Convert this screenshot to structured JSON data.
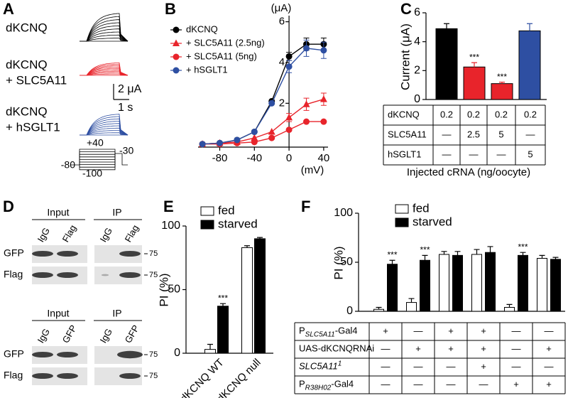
{
  "panel_labels": [
    "A",
    "B",
    "C",
    "D",
    "E",
    "F"
  ],
  "panel_a": {
    "conditions": [
      [
        "dKCNQ"
      ],
      [
        "dKCNQ",
        "+ SLC5A11"
      ],
      [
        "dKCNQ",
        "+ hSGLT1"
      ]
    ],
    "scale": [
      "2 μA",
      "1 s"
    ],
    "protocol": [
      "+40",
      "-30",
      "-80",
      "-100"
    ]
  },
  "chart_data": [
    {
      "type": "line",
      "y_label": "(μA)",
      "x_label": "(mV)",
      "x": [
        -100,
        -80,
        -60,
        -40,
        -20,
        0,
        20,
        40
      ],
      "xlim": [
        -105,
        45
      ],
      "ylim": [
        -0.15,
        6.3
      ],
      "xticks": [
        -80,
        -40,
        0,
        40
      ],
      "yticks": [
        2,
        4,
        6
      ],
      "series": [
        {
          "name": "dKCNQ",
          "color": "#000000",
          "marker": "circle",
          "values": [
            0,
            0.05,
            0.2,
            0.6,
            2.1,
            4.3,
            4.9,
            4.9
          ],
          "errors": [
            null,
            null,
            null,
            null,
            null,
            0.2,
            0.3,
            0.3
          ]
        },
        {
          "name": "+ SLC5A11 (2.5ng)",
          "color": "#e8242b",
          "marker": "triangle",
          "values": [
            0,
            0.05,
            0.1,
            0.3,
            0.6,
            1.3,
            1.95,
            2.2
          ],
          "errors": [
            null,
            null,
            null,
            null,
            null,
            0.2,
            0.3,
            0.3
          ]
        },
        {
          "name": "+ SLC5A11 (5ng)",
          "color": "#e8242b",
          "marker": "circle",
          "values": [
            0,
            0,
            0.05,
            0.1,
            0.3,
            0.7,
            1.1,
            1.1
          ]
        },
        {
          "name": "+ hSGLT1",
          "color": "#2e4fa2",
          "marker": "circle",
          "values": [
            0,
            0.05,
            0.2,
            0.6,
            2.0,
            3.8,
            4.7,
            4.6
          ],
          "errors": [
            null,
            null,
            null,
            null,
            null,
            0.3,
            0.4,
            0.4
          ]
        }
      ]
    },
    {
      "type": "bar",
      "y_label": "Current (μA)",
      "values": [
        4.9,
        2.25,
        1.1,
        4.75
      ],
      "errors": [
        0.35,
        0.3,
        0.1,
        0.5
      ],
      "colors": [
        "#000000",
        "#e8242b",
        "#e8242b",
        "#2e4fa2"
      ],
      "annotations": [
        null,
        "***",
        "***",
        null
      ],
      "ylim": [
        0,
        6
      ],
      "yticks": [
        0,
        2,
        4,
        6
      ]
    },
    {
      "type": "bar",
      "y_label": "PI (%)",
      "categories": [
        "dKCNQ WT",
        "dKCNQ null"
      ],
      "series": [
        {
          "name": "fed",
          "color": "#ffffff",
          "values": [
            3,
            83
          ],
          "errors": [
            4,
            1.5
          ]
        },
        {
          "name": "starved",
          "color": "#000000",
          "values": [
            37,
            90
          ],
          "errors": [
            2,
            1
          ],
          "annotations": [
            "***",
            null
          ]
        }
      ],
      "ylim": [
        0,
        100
      ],
      "yticks": [
        0,
        50,
        100
      ]
    },
    {
      "type": "bar",
      "y_label": "PI (%)",
      "series": [
        {
          "name": "fed",
          "color": "#ffffff",
          "values": [
            2,
            9,
            58,
            58,
            4,
            54
          ],
          "errors": [
            2,
            4,
            3,
            5,
            3,
            3
          ]
        },
        {
          "name": "starved",
          "color": "#000000",
          "values": [
            48,
            52,
            57,
            60,
            57,
            53
          ],
          "errors": [
            4,
            5,
            4,
            6,
            3,
            2
          ],
          "annotations": [
            "***",
            "***",
            null,
            null,
            "***",
            null
          ]
        }
      ],
      "ylim": [
        0,
        100
      ],
      "yticks": [
        0,
        50,
        100
      ]
    }
  ],
  "tables": {
    "c": {
      "rows": [
        {
          "label": "dKCNQ",
          "cells": [
            0.2,
            0.2,
            0.2,
            0.2
          ]
        },
        {
          "label": "SLC5A11",
          "cells": [
            "—",
            2.5,
            5,
            "—"
          ]
        },
        {
          "label": "hSGLT1",
          "cells": [
            "—",
            "—",
            "—",
            5
          ]
        }
      ],
      "caption": "Injected cRNA (ng/oocyte)"
    },
    "f": {
      "rows": [
        {
          "label": [
            {
              "text": "P"
            },
            {
              "text": "SLC5A11",
              "script": "sub",
              "italic": true
            },
            {
              "text": "-Gal4"
            }
          ],
          "cells": [
            "+",
            "—",
            "+",
            "+",
            "—",
            "—"
          ]
        },
        {
          "label": [
            {
              "text": "UAS-dKCNQRNAi"
            }
          ],
          "cells": [
            "—",
            "+",
            "+",
            "+",
            "—",
            "+"
          ]
        },
        {
          "label": [
            {
              "text": "SLC5A11",
              "italic": true
            },
            {
              "text": "1",
              "script": "sup",
              "italic": true
            }
          ],
          "cells": [
            "—",
            "—",
            "—",
            "+",
            "—",
            "—"
          ]
        },
        {
          "label": [
            {
              "text": "P"
            },
            {
              "text": "R38H02",
              "script": "sub",
              "italic": true
            },
            {
              "text": "-Gal4"
            }
          ],
          "cells": [
            "—",
            "—",
            "—",
            "—",
            "+",
            "+"
          ]
        }
      ]
    }
  },
  "panel_d": {
    "blots": [
      {
        "headers": [
          "Input",
          "IP"
        ],
        "lanes": [
          "IgG",
          "Flag",
          "IgG",
          "Flag"
        ],
        "rows": [
          "GFP",
          "Flag"
        ],
        "marker": "75"
      },
      {
        "headers": [
          "Input",
          "IP"
        ],
        "lanes": [
          "IgG",
          "GFP",
          "IgG",
          "GFP"
        ],
        "rows": [
          "GFP",
          "Flag"
        ],
        "marker": "75"
      }
    ]
  }
}
